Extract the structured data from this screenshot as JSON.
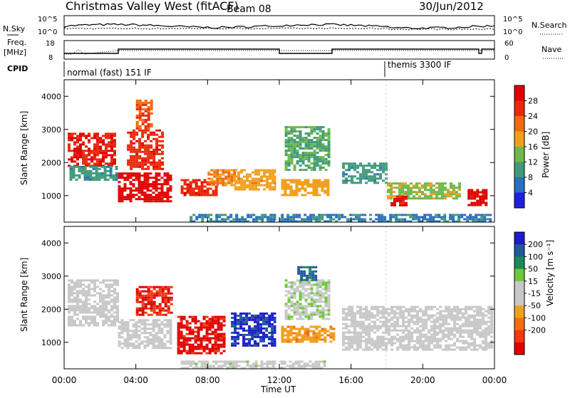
{
  "header": {
    "title": "Christmas Valley West (fitACF)",
    "beam": "Beam 08",
    "date": "30/Jun/2012"
  },
  "summary": {
    "nsky_label": "N.Sky",
    "nsearch_label": "N.Search",
    "freq_label_line1": "Freq.",
    "freq_label_line2": "[MHz]",
    "nave_label": "Nave",
    "cpid_label": "CPID",
    "count_ticks": [
      "10^5",
      "10^0"
    ],
    "freq_ticks": [
      "18",
      "8"
    ],
    "nave_ticks": [
      "60",
      "0"
    ],
    "modes": [
      {
        "label": "normal (fast) 151 IF",
        "start_hour": 0,
        "end_hour": 18
      },
      {
        "label": "themis 3300 IF",
        "start_hour": 18,
        "end_hour": 24
      }
    ]
  },
  "colors": {
    "power": [
      "#1f1fe0",
      "#2a6fc0",
      "#3f9a7a",
      "#6fb84a",
      "#f0a020",
      "#f06a10",
      "#e82a0a",
      "#e00000"
    ],
    "velocity": [
      "#1c1cc8",
      "#1f5a9a",
      "#1a8a5a",
      "#6ec83a",
      "#c8c8c8",
      "#c8c8c8",
      "#f0a020",
      "#f07010",
      "#f03a10",
      "#e00000"
    ],
    "ground_scatter": "#c8c8c8"
  },
  "chart_data": [
    {
      "type": "heatmap",
      "panel": "power",
      "ylabel": "Slant Range [km]",
      "yticks": [
        "1000",
        "2000",
        "3000",
        "4000"
      ],
      "ylim": [
        200,
        4500
      ],
      "xlim": [
        0,
        24
      ],
      "colorbar_label": "Power [dB]",
      "colorbar_ticks": [
        "4",
        "8",
        "12",
        "16",
        "20",
        "24",
        "28"
      ],
      "clim": [
        0,
        30
      ],
      "blobs": [
        {
          "t0": 0.2,
          "t1": 2.8,
          "r0": 1900,
          "r1": 2900,
          "v": 26
        },
        {
          "t0": 0.3,
          "t1": 3.0,
          "r0": 1500,
          "r1": 1900,
          "v": 9
        },
        {
          "t0": 3.0,
          "t1": 6.0,
          "r0": 800,
          "r1": 1700,
          "v": 28
        },
        {
          "t0": 3.5,
          "t1": 5.5,
          "r0": 1800,
          "r1": 3000,
          "v": 25
        },
        {
          "t0": 4.0,
          "t1": 4.8,
          "r0": 3000,
          "r1": 3900,
          "v": 22
        },
        {
          "t0": 6.5,
          "t1": 8.5,
          "r0": 1000,
          "r1": 1500,
          "v": 25
        },
        {
          "t0": 8.0,
          "t1": 9.5,
          "r0": 1300,
          "r1": 1800,
          "v": 19
        },
        {
          "t0": 9.5,
          "t1": 11.8,
          "r0": 1200,
          "r1": 1800,
          "v": 17
        },
        {
          "t0": 12.1,
          "t1": 14.8,
          "r0": 1000,
          "r1": 1500,
          "v": 17
        },
        {
          "t0": 12.3,
          "t1": 14.7,
          "r0": 1800,
          "r1": 3100,
          "v": 11
        },
        {
          "t0": 15.5,
          "t1": 18.0,
          "r0": 1400,
          "r1": 2000,
          "v": 9
        },
        {
          "t0": 18.0,
          "t1": 22.0,
          "r0": 900,
          "r1": 1400,
          "v": 14
        },
        {
          "t0": 18.2,
          "t1": 19.0,
          "r0": 700,
          "r1": 1000,
          "v": 27
        },
        {
          "t0": 22.5,
          "t1": 23.6,
          "r0": 700,
          "r1": 1200,
          "v": 28
        },
        {
          "t0": 7.0,
          "t1": 23.8,
          "r0": 250,
          "r1": 450,
          "v": 7
        }
      ]
    },
    {
      "type": "heatmap",
      "panel": "velocity",
      "ylabel": "Slant Range [km]",
      "yticks": [
        "1000",
        "2000",
        "3000",
        "4000"
      ],
      "ylim": [
        200,
        4500
      ],
      "xlim": [
        0,
        24
      ],
      "xticks": [
        "00:00",
        "04:00",
        "08:00",
        "12:00",
        "16:00",
        "20:00",
        "00:00"
      ],
      "xlabel": "Time UT",
      "colorbar_label": "Velocity [m s⁻¹]",
      "colorbar_ticks": [
        "200",
        "100",
        "50",
        "15",
        "-15",
        "-50",
        "-100",
        "-200"
      ],
      "clim": [
        -250,
        250
      ],
      "blobs": [
        {
          "t0": 0.2,
          "t1": 3.0,
          "r0": 1500,
          "r1": 2900,
          "v": 0
        },
        {
          "t0": 3.0,
          "t1": 6.0,
          "r0": 800,
          "r1": 1700,
          "v": 0
        },
        {
          "t0": 4.0,
          "t1": 6.0,
          "r0": 1800,
          "r1": 2700,
          "v": -200
        },
        {
          "t0": 6.3,
          "t1": 9.0,
          "r0": 700,
          "r1": 1800,
          "v": -220
        },
        {
          "t0": 9.3,
          "t1": 11.8,
          "r0": 900,
          "r1": 1900,
          "v": 210
        },
        {
          "t0": 12.1,
          "t1": 15.0,
          "r0": 1000,
          "r1": 1500,
          "v": -80
        },
        {
          "t0": 12.3,
          "t1": 14.8,
          "r0": 1700,
          "r1": 2900,
          "v": 40
        },
        {
          "t0": 13.0,
          "t1": 14.0,
          "r0": 2900,
          "r1": 3300,
          "v": 160
        },
        {
          "t0": 15.5,
          "t1": 23.8,
          "r0": 800,
          "r1": 2100,
          "v": 0
        },
        {
          "t0": 6.5,
          "t1": 14.5,
          "r0": 250,
          "r1": 450,
          "v": 25
        }
      ]
    }
  ]
}
